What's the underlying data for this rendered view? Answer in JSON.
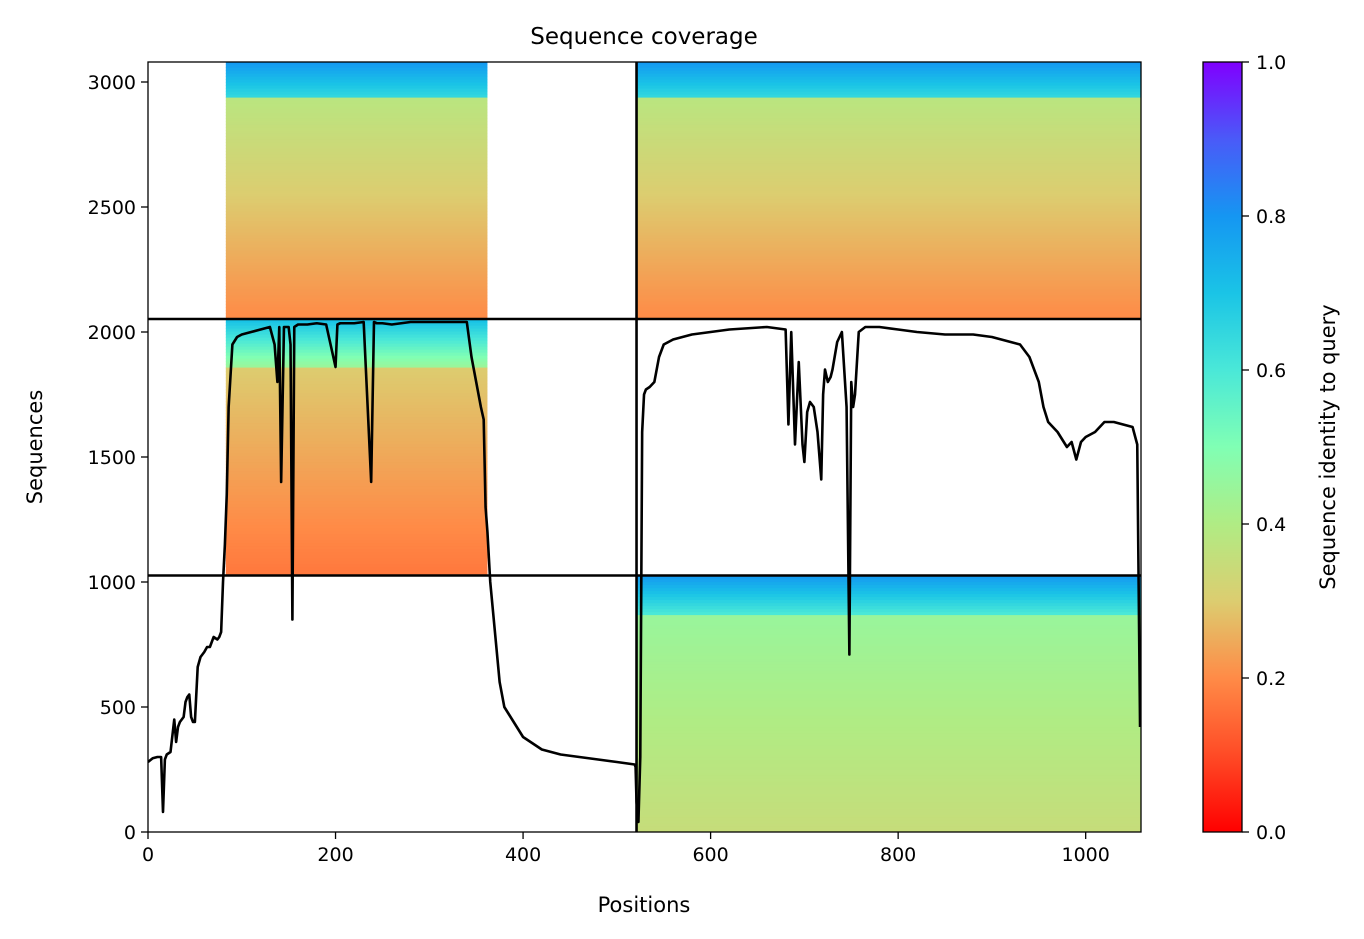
{
  "chart_data": {
    "type": "heatmap",
    "title": "Sequence coverage",
    "xlabel": "Positions",
    "ylabel": "Sequences",
    "xlim": [
      0,
      1059
    ],
    "ylim": [
      0,
      3080
    ],
    "xticks": [
      0,
      200,
      400,
      600,
      800,
      1000
    ],
    "yticks": [
      0,
      500,
      1000,
      1500,
      2000,
      2500,
      3000
    ],
    "grid": false,
    "colorbar": {
      "label": "Sequence identity to query",
      "colormap": "rainbow",
      "range": [
        0.0,
        1.0
      ],
      "ticks": [
        "0.0",
        "0.2",
        "0.4",
        "0.6",
        "0.8",
        "1.0"
      ]
    },
    "chain_boundaries": {
      "x": [
        521
      ],
      "y": [
        1026,
        2052
      ]
    },
    "blocks": [
      {
        "name": "chain2-block",
        "x": [
          521,
          1059
        ],
        "y": [
          0,
          1026
        ],
        "bands": [
          {
            "from": 0,
            "to": 870,
            "identity_bottom": 0.35,
            "identity_top": 0.45
          },
          {
            "from": 870,
            "to": 1026,
            "identity_bottom": 0.6,
            "identity_top": 0.8
          }
        ]
      },
      {
        "name": "chain1-block",
        "x": [
          0,
          521
        ],
        "y": [
          1026,
          2052
        ],
        "cover_x": [
          83,
          362
        ],
        "bands": [
          {
            "from": 1026,
            "to": 1860,
            "identity_bottom": 0.17,
            "identity_top": 0.3
          },
          {
            "from": 1860,
            "to": 2052,
            "identity_bottom": 0.45,
            "identity_top": 0.72
          }
        ]
      },
      {
        "name": "complex-block",
        "x": [
          0,
          1059
        ],
        "y": [
          2052,
          3080
        ],
        "chain1_cover_x": [
          83,
          362
        ],
        "bands": [
          {
            "from": 2052,
            "to": 2940,
            "identity_bottom": 0.2,
            "identity_top": 0.38
          },
          {
            "from": 2940,
            "to": 3080,
            "identity_bottom": 0.65,
            "identity_top": 0.8
          }
        ]
      }
    ],
    "series": [
      {
        "type": "line",
        "color": "#000000",
        "x": [
          0,
          5,
          10,
          14,
          16,
          18,
          20,
          24,
          28,
          30,
          32,
          34,
          38,
          40,
          42,
          44,
          46,
          48,
          50,
          53,
          56,
          60,
          63,
          66,
          70,
          74,
          76,
          78,
          80,
          82,
          84,
          86,
          90,
          95,
          100,
          110,
          120,
          130,
          135,
          138,
          140,
          142,
          145,
          150,
          152,
          154,
          156,
          160,
          170,
          180,
          190,
          200,
          202,
          205,
          210,
          220,
          230,
          238,
          241,
          244,
          250,
          260,
          280,
          300,
          320,
          340,
          345,
          350,
          355,
          358,
          360,
          362,
          365,
          370,
          375,
          380,
          390,
          400,
          420,
          440,
          460,
          480,
          500,
          519,
          520,
          521,
          523,
          525,
          527,
          529,
          531,
          535,
          540,
          545,
          550,
          560,
          570,
          580,
          600,
          620,
          640,
          660,
          680,
          683,
          686,
          690,
          694,
          698,
          700,
          703,
          706,
          710,
          714,
          718,
          720,
          722,
          725,
          728,
          730,
          735,
          740,
          745,
          748,
          750,
          752,
          754,
          758,
          765,
          780,
          800,
          820,
          850,
          880,
          900,
          910,
          920,
          930,
          940,
          950,
          955,
          960,
          965,
          970,
          980,
          985,
          990,
          995,
          1000,
          1010,
          1020,
          1030,
          1040,
          1050,
          1055,
          1058
        ],
        "values": [
          280,
          295,
          300,
          300,
          80,
          290,
          310,
          320,
          450,
          360,
          420,
          440,
          460,
          520,
          540,
          550,
          460,
          440,
          440,
          660,
          700,
          720,
          740,
          740,
          780,
          770,
          780,
          800,
          1000,
          1150,
          1350,
          1700,
          1950,
          1980,
          1990,
          2000,
          2010,
          2020,
          1950,
          1800,
          2020,
          1400,
          2020,
          2020,
          1950,
          850,
          2020,
          2030,
          2030,
          2035,
          2030,
          1860,
          2030,
          2035,
          2035,
          2035,
          2040,
          1400,
          2040,
          2035,
          2035,
          2030,
          2040,
          2040,
          2040,
          2040,
          1900,
          1800,
          1700,
          1650,
          1300,
          1200,
          1000,
          800,
          600,
          500,
          440,
          380,
          330,
          310,
          300,
          290,
          280,
          270,
          260,
          120,
          40,
          300,
          1600,
          1750,
          1770,
          1780,
          1800,
          1900,
          1950,
          1970,
          1980,
          1990,
          2000,
          2010,
          2015,
          2020,
          2010,
          1630,
          2000,
          1550,
          1880,
          1550,
          1480,
          1680,
          1720,
          1700,
          1600,
          1410,
          1750,
          1850,
          1800,
          1820,
          1850,
          1960,
          2000,
          1700,
          710,
          1800,
          1700,
          1750,
          2000,
          2020,
          2020,
          2010,
          2000,
          1990,
          1990,
          1980,
          1970,
          1960,
          1950,
          1900,
          1800,
          1700,
          1640,
          1620,
          1600,
          1540,
          1560,
          1490,
          1560,
          1580,
          1600,
          1640,
          1640,
          1630,
          1620,
          1550,
          420
        ]
      }
    ]
  }
}
